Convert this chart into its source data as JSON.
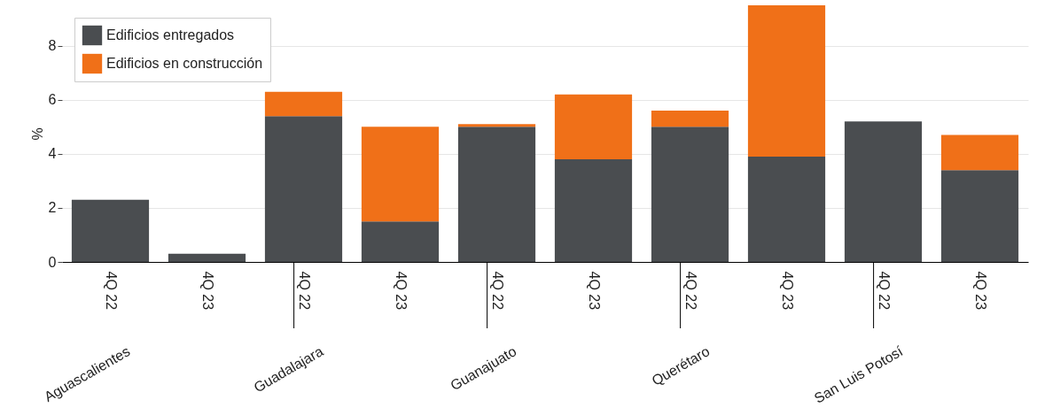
{
  "chart_data": {
    "type": "bar",
    "stacked": true,
    "ylabel": "%",
    "categories": [
      "4Q 22",
      "4Q 23",
      "4Q 22",
      "4Q 23",
      "4Q 22",
      "4Q 23",
      "4Q 22",
      "4Q 23",
      "4Q 22",
      "4Q 23"
    ],
    "series": [
      {
        "name": "Edificios entregados",
        "color": "#4a4d50",
        "values": [
          2.3,
          0.3,
          5.4,
          1.5,
          5.0,
          3.8,
          5.0,
          3.9,
          5.2,
          3.4
        ]
      },
      {
        "name": "Edificios en construcción",
        "color": "#f07018",
        "values": [
          null,
          null,
          0.9,
          3.5,
          0.1,
          2.4,
          0.6,
          5.6,
          null,
          1.3
        ]
      }
    ],
    "ylim": [
      0,
      9.5
    ],
    "yticks": [
      0,
      2,
      4,
      6,
      8
    ],
    "grid": "y",
    "legend": "top left",
    "annotations": [
      "Aguascalientes",
      "Guadalajara",
      "Guanajuato",
      "Querétaro",
      "San Luis Potosí"
    ]
  }
}
